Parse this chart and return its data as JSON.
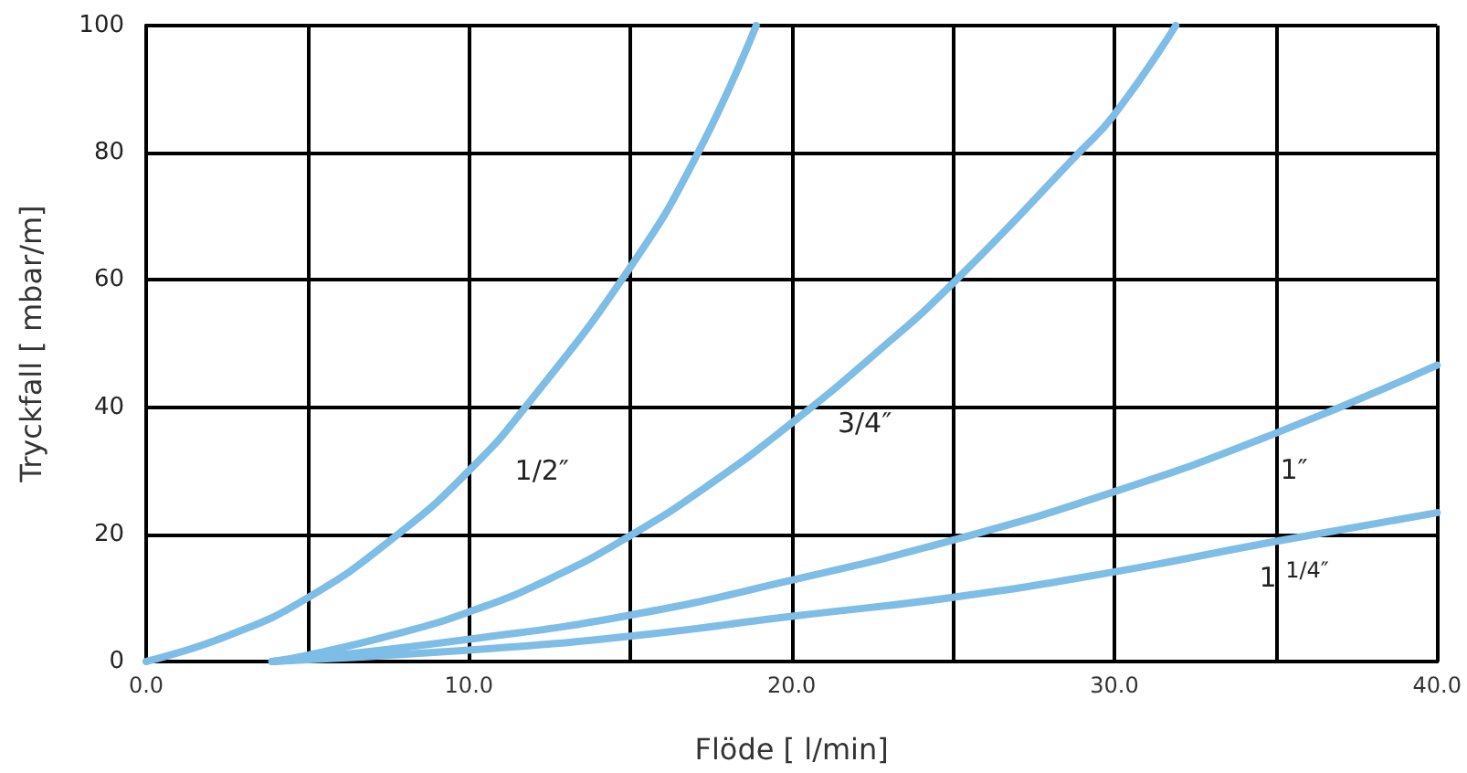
{
  "chart_data": {
    "type": "line",
    "xlabel": "Flöde [ l/min]",
    "ylabel": "Tryckfall [ mbar/m]",
    "xlim": [
      0,
      40
    ],
    "ylim": [
      0,
      100
    ],
    "xticks": [
      {
        "value": 0,
        "label": "0.0"
      },
      {
        "value": 5,
        "label": null
      },
      {
        "value": 10,
        "label": "10.0"
      },
      {
        "value": 15,
        "label": null
      },
      {
        "value": 20,
        "label": "20.0"
      },
      {
        "value": 25,
        "label": null
      },
      {
        "value": 30,
        "label": "30.0"
      },
      {
        "value": 35,
        "label": null
      },
      {
        "value": 40,
        "label": "40.0"
      }
    ],
    "yticks": [
      0,
      20,
      40,
      60,
      80,
      100
    ],
    "grid": true,
    "marker": "none",
    "line_style": "solid",
    "series": [
      {
        "name": "1/2″",
        "color": "#7dbde6",
        "x": [
          0,
          2.5,
          5,
          7.8,
          10,
          11.75,
          15,
          17.1,
          18.9
        ],
        "values": [
          0,
          4,
          10,
          20,
          30,
          40,
          62,
          80,
          100
        ]
      },
      {
        "name": "3/4″",
        "color": "#7dbde6",
        "x": [
          3.9,
          5,
          7.5,
          10,
          12.5,
          15,
          17.5,
          20,
          22.5,
          25,
          28.9,
          30,
          31.9
        ],
        "values": [
          0,
          1,
          4,
          7.8,
          13,
          19.8,
          28,
          37.5,
          48,
          59.5,
          80,
          86,
          100
        ]
      },
      {
        "name": "1″",
        "color": "#7dbde6",
        "x": [
          3.9,
          5,
          10,
          15,
          20,
          25,
          30,
          35,
          40
        ],
        "values": [
          0,
          0.5,
          3.5,
          7.3,
          12.8,
          19.1,
          26.7,
          35.9,
          46.6
        ]
      },
      {
        "name": "1 $^{1/4″}$",
        "color": "#7dbde6",
        "x": [
          3.9,
          10,
          15,
          20,
          25,
          30,
          35,
          40
        ],
        "values": [
          0,
          1.8,
          4,
          7.1,
          10.1,
          14.1,
          18.9,
          23.4
        ]
      }
    ]
  }
}
